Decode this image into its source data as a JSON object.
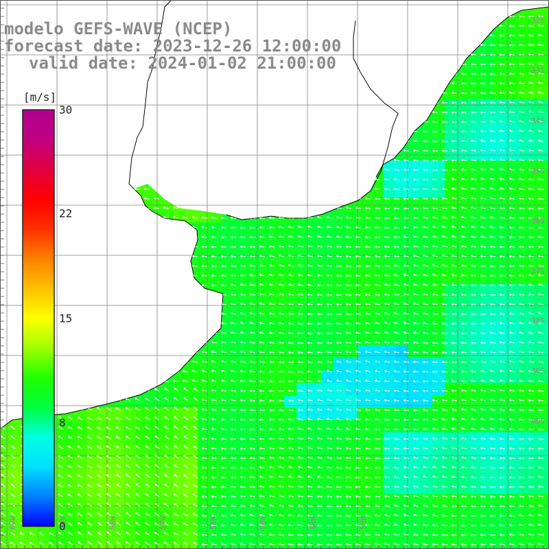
{
  "titles": {
    "model": "modelo GEFS-WAVE (NCEP)",
    "forecast": "forecast date: 2023-12-26 12:00:00",
    "valid": "valid date: 2024-01-02 21:00:00"
  },
  "colorbar": {
    "unit": "[m/s]",
    "min": 0,
    "max": 30,
    "ticks": [
      "30",
      "22",
      "15",
      "8",
      "0"
    ],
    "tick_values": [
      30,
      22,
      15,
      8,
      0
    ],
    "colors": [
      "#0000ff",
      "#0080ff",
      "#00e0ff",
      "#00ffe0",
      "#00ff40",
      "#20ff00",
      "#a0ff00",
      "#ffff00",
      "#ffc000",
      "#ff8000",
      "#ff3000",
      "#ff0000",
      "#e00040",
      "#c00080",
      "#b00090"
    ]
  },
  "lat_labels": [
    "32S",
    "33S",
    "34S",
    "35S",
    "36S",
    "37S",
    "38S",
    "39S",
    "40S"
  ],
  "lon_labels": [
    "60W",
    "59W",
    "58W",
    "57W",
    "56W",
    "55W",
    "54W",
    "53W"
  ],
  "land_color": "#ffffff",
  "grid_color": "#7f7f7f"
}
